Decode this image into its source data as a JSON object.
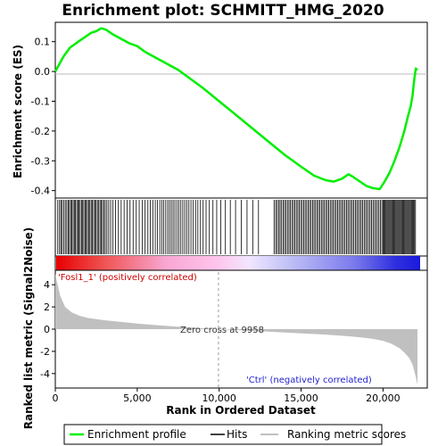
{
  "chart_data": {
    "type": "line",
    "title": "Enrichment plot: SCHMITT_HMG_2020",
    "top_panel": {
      "ylabel": "Enrichment score (ES)",
      "ylim": [
        -0.425,
        0.165
      ],
      "yticks": [
        0.1,
        0.0,
        -0.1,
        -0.2,
        -0.3,
        -0.4
      ],
      "ytick_labels": [
        "0.1",
        "0.0",
        "-0.1",
        "-0.2",
        "-0.3",
        "-0.4"
      ],
      "series": [
        {
          "name": "Enrichment profile",
          "color": "#00ee00",
          "x": [
            0,
            200,
            500,
            900,
            1400,
            1800,
            2200,
            2500,
            2800,
            3100,
            3500,
            4000,
            4500,
            5000,
            5500,
            6000,
            6500,
            7000,
            7500,
            8000,
            8500,
            9000,
            10000,
            11000,
            12000,
            13000,
            14000,
            15000,
            15800,
            16500,
            17000,
            17500,
            17900,
            18200,
            18600,
            19000,
            19400,
            19800,
            20100,
            20400,
            20700,
            21000,
            21300,
            21500,
            21700,
            21800,
            21900,
            22000,
            22100
          ],
          "y": [
            0.0,
            0.02,
            0.05,
            0.08,
            0.1,
            0.115,
            0.13,
            0.135,
            0.145,
            0.14,
            0.125,
            0.11,
            0.095,
            0.085,
            0.065,
            0.05,
            0.035,
            0.02,
            0.005,
            -0.015,
            -0.035,
            -0.055,
            -0.1,
            -0.145,
            -0.19,
            -0.235,
            -0.28,
            -0.32,
            -0.35,
            -0.365,
            -0.37,
            -0.36,
            -0.345,
            -0.355,
            -0.37,
            -0.385,
            -0.392,
            -0.395,
            -0.37,
            -0.34,
            -0.3,
            -0.255,
            -0.2,
            -0.155,
            -0.115,
            -0.08,
            -0.03,
            0.01,
            0.005
          ]
        }
      ]
    },
    "hits_panel": {
      "legend_name": "Hits",
      "positions": [
        150,
        260,
        340,
        420,
        520,
        610,
        700,
        790,
        860,
        940,
        1010,
        1090,
        1160,
        1230,
        1310,
        1380,
        1450,
        1520,
        1600,
        1670,
        1740,
        1820,
        1890,
        1960,
        2040,
        2110,
        2190,
        2260,
        2340,
        2420,
        2490,
        2570,
        2650,
        2730,
        2800,
        2880,
        2960,
        3050,
        3150,
        3260,
        3380,
        3520,
        3680,
        3850,
        4020,
        4200,
        4380,
        4560,
        4750,
        4940,
        5120,
        5300,
        5480,
        5650,
        5800,
        5950,
        6100,
        6240,
        6380,
        6500,
        6620,
        6740,
        6860,
        6970,
        7080,
        7190,
        7300,
        7420,
        7540,
        7660,
        7780,
        7900,
        8020,
        8150,
        8280,
        8420,
        8560,
        8700,
        8860,
        9020,
        9200,
        9400,
        9620,
        9850,
        10100,
        10380,
        10680,
        11000,
        11350,
        11700,
        12050,
        12400,
        13350,
        13450,
        13540,
        13630,
        13720,
        13810,
        13900,
        13990,
        14080,
        14170,
        14260,
        14350,
        14440,
        14530,
        14620,
        14710,
        14800,
        14890,
        14980,
        15070,
        15160,
        15250,
        15340,
        15430,
        15520,
        15610,
        15700,
        15790,
        15880,
        15970,
        16060,
        16150,
        16240,
        16330,
        16420,
        16510,
        16600,
        16690,
        16780,
        16870,
        16960,
        17050,
        17140,
        17230,
        17320,
        17410,
        17500,
        17590,
        17680,
        17770,
        17860,
        17950,
        18040,
        18130,
        18220,
        18310,
        18400,
        18490,
        18580,
        18670,
        18760,
        18850,
        18940,
        19030,
        19120,
        19210,
        19300,
        19390,
        19480,
        19570,
        19660,
        19750,
        19840,
        19930,
        20000,
        20060,
        20120,
        20180,
        20240,
        20300,
        20360,
        20420,
        20480,
        20540,
        20600,
        20660,
        20720,
        20780,
        20840,
        20900,
        20960,
        21020,
        21080,
        21140,
        21200,
        21260,
        21320,
        21380,
        21440,
        21500,
        21560,
        21620,
        21680,
        21740,
        21800,
        21860,
        21920,
        21980
      ]
    },
    "bottom_panel": {
      "ylabel": "Ranked list metric (Signal2Noise)",
      "ylim": [
        -5.3,
        5.3
      ],
      "yticks": [
        4,
        2,
        0,
        -2,
        -4
      ],
      "ytick_labels": [
        "4",
        "2",
        "0",
        "-2",
        "-4"
      ],
      "legend_name": "Ranking metric scores",
      "x": [
        0,
        100,
        300,
        600,
        1000,
        1500,
        2000,
        3000,
        4000,
        5000,
        6000,
        7000,
        8000,
        9000,
        9958,
        11000,
        12000,
        13000,
        14000,
        15000,
        16000,
        17000,
        18000,
        18500,
        19000,
        19500,
        20000,
        20500,
        21000,
        21300,
        21600,
        21800,
        22000,
        22100
      ],
      "y": [
        5.0,
        4.3,
        3.0,
        2.0,
        1.5,
        1.2,
        1.0,
        0.8,
        0.65,
        0.5,
        0.38,
        0.27,
        0.17,
        0.08,
        0.0,
        -0.08,
        -0.15,
        -0.22,
        -0.3,
        -0.38,
        -0.45,
        -0.55,
        -0.65,
        -0.72,
        -0.8,
        -0.9,
        -1.05,
        -1.3,
        -1.7,
        -2.1,
        -2.6,
        -3.2,
        -4.3,
        -5.0
      ]
    },
    "xlabel": "Rank in Ordered Dataset",
    "xlim": [
      0,
      22700
    ],
    "xticks": [
      0,
      5000,
      10000,
      15000,
      20000
    ],
    "xtick_labels": [
      "0",
      "5,000",
      "10,000",
      "15,000",
      "20,000"
    ],
    "annotations": {
      "positive": "'Fosl1_1' (positively correlated)",
      "negative": "'Ctrl' (negatively correlated)",
      "zero_cross": "Zero cross at 9958",
      "zero_cross_rank": 9958
    },
    "legend": {
      "placement": "bottom",
      "entries": [
        "Enrichment profile",
        "Hits",
        "Ranking metric scores"
      ]
    },
    "colors": {
      "profile": "#00ee00",
      "hits": "#000000",
      "metric_fill": "#c0c0c0",
      "positive_text": "#cc0000",
      "negative_text": "#2222cc",
      "heat_positive": "#e80000",
      "heat_negative": "#1a1adc"
    }
  }
}
